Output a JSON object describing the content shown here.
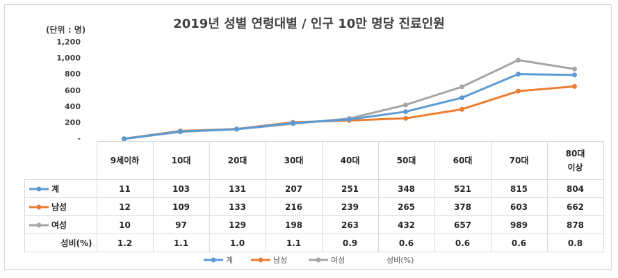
{
  "chart_data": {
    "type": "line",
    "title": "2019년 성별 연령대별 / 인구 10만 명당 진료인원",
    "unit_label": "(단위 : 명)",
    "ylim": [
      0,
      1200
    ],
    "yticks": [
      "-",
      "200",
      "400",
      "600",
      "800",
      "1,000",
      "1,200"
    ],
    "categories": [
      "9세이하",
      "10대",
      "20대",
      "30대",
      "40대",
      "50대",
      "60대",
      "70대",
      "80대 이상"
    ],
    "series": [
      {
        "name": "계",
        "color": "#5b9bd5",
        "values": [
          11,
          103,
          131,
          207,
          251,
          348,
          521,
          815,
          804
        ]
      },
      {
        "name": "남성",
        "color": "#ed7d31",
        "values": [
          12,
          109,
          133,
          216,
          239,
          265,
          378,
          603,
          662
        ]
      },
      {
        "name": "여성",
        "color": "#a5a5a5",
        "values": [
          10,
          97,
          129,
          198,
          263,
          432,
          657,
          989,
          878
        ]
      }
    ],
    "ratio_row": {
      "name": "성비(%)",
      "values": [
        "1.2",
        "1.1",
        "1.0",
        "1.1",
        "0.9",
        "0.6",
        "0.6",
        "0.6",
        "0.8"
      ]
    },
    "grid": false,
    "legend_position": "bottom"
  }
}
